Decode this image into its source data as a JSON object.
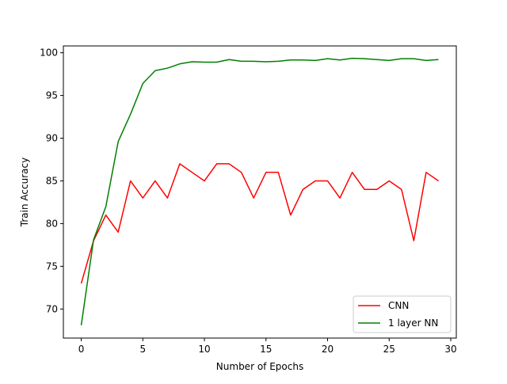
{
  "chart_data": {
    "type": "line",
    "title": "",
    "xlabel": "Number of Epochs",
    "ylabel": "Train Accuracy",
    "xlim": [
      -1.45,
      30.45
    ],
    "ylim": [
      66.6,
      100.8
    ],
    "xticks": [
      0,
      5,
      10,
      15,
      20,
      25,
      30
    ],
    "yticks": [
      70,
      75,
      80,
      85,
      90,
      95,
      100
    ],
    "grid": false,
    "legend_position": "lower-right",
    "x": [
      0,
      1,
      2,
      3,
      4,
      5,
      6,
      7,
      8,
      9,
      10,
      11,
      12,
      13,
      14,
      15,
      16,
      17,
      18,
      19,
      20,
      21,
      22,
      23,
      24,
      25,
      26,
      27,
      28,
      29
    ],
    "series": [
      {
        "name": "CNN",
        "color": "#ff0000",
        "values": [
          73,
          78,
          81,
          79,
          85,
          83,
          85,
          83,
          87,
          86,
          85,
          87,
          87,
          86,
          83,
          86,
          86,
          81,
          84,
          85,
          85,
          83,
          86,
          84,
          84,
          85,
          84,
          78,
          86,
          85
        ]
      },
      {
        "name": "1 layer NN",
        "color": "#008000",
        "values": [
          68.1,
          78.1,
          82.0,
          89.6,
          92.8,
          96.4,
          97.9,
          98.2,
          98.7,
          98.95,
          98.9,
          98.9,
          99.2,
          99.0,
          99.0,
          98.95,
          99.0,
          99.15,
          99.15,
          99.1,
          99.3,
          99.15,
          99.35,
          99.3,
          99.2,
          99.1,
          99.3,
          99.3,
          99.1,
          99.2
        ]
      }
    ]
  }
}
